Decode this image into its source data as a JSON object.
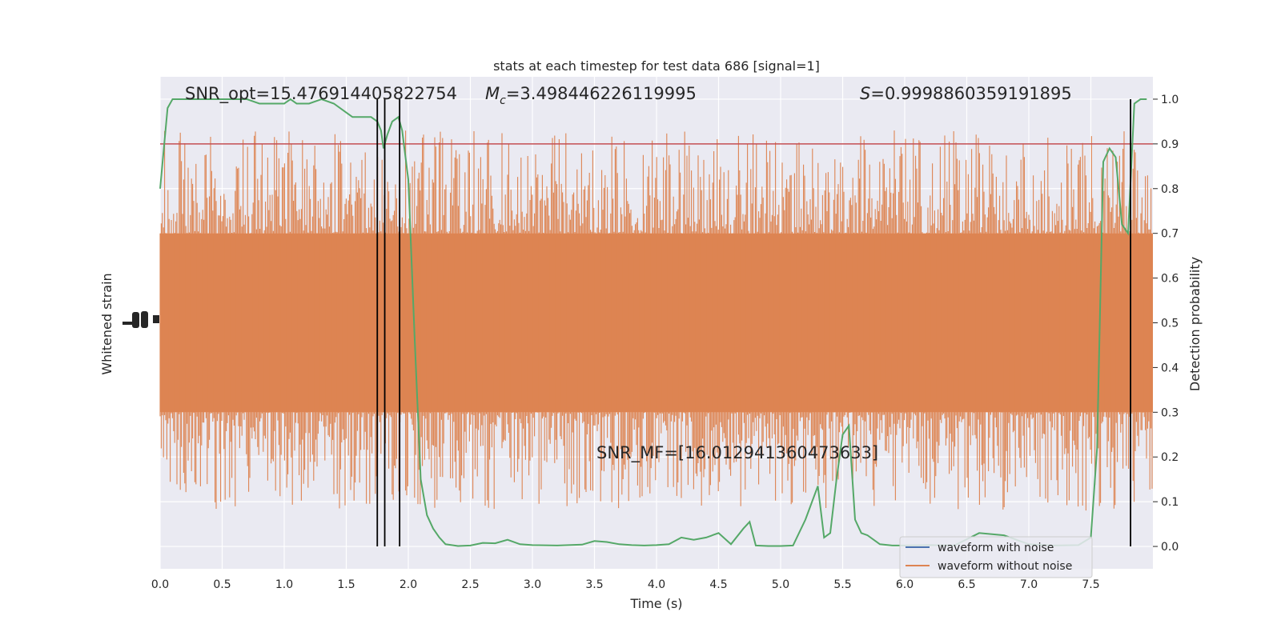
{
  "chart_data": {
    "type": "line",
    "title": "stats at each timestep for test data 686 [signal=1]",
    "xlabel": "Time (s)",
    "ylabel_left": "Whitened strain",
    "ylabel_right": "Detection probability",
    "xlim": [
      0,
      8.0
    ],
    "ylim_right": [
      -0.05,
      1.05
    ],
    "x_ticks": [
      "0.0",
      "0.5",
      "1.0",
      "1.5",
      "2.0",
      "2.5",
      "3.0",
      "3.5",
      "4.0",
      "4.5",
      "5.0",
      "5.5",
      "6.0",
      "6.5",
      "7.0",
      "7.5"
    ],
    "y_right_ticks": [
      "0.0",
      "0.1",
      "0.2",
      "0.3",
      "0.4",
      "0.5",
      "0.6",
      "0.7",
      "0.8",
      "0.9",
      "1.0"
    ],
    "threshold": 0.9,
    "vertical_lines_x": [
      1.75,
      1.81,
      1.93,
      7.82
    ],
    "annotations": {
      "snr_opt": "SNR_opt=15.476914405822754",
      "mc_symbol": "M",
      "mc_sub": "c",
      "mc_value": "=3.498446226119995",
      "s_symbol": "S",
      "s_value": "=0.9998860359191895",
      "snr_mf": "SNR_MF=[16.012941360473633]"
    },
    "series": [
      {
        "name": "waveform with noise",
        "color": "#4c72b0"
      },
      {
        "name": "waveform without noise",
        "color": "#dd8452"
      },
      {
        "color": "#55a868",
        "x": [
          0.0,
          0.06,
          0.1,
          0.2,
          0.3,
          0.4,
          0.5,
          0.6,
          0.7,
          0.8,
          0.9,
          1.0,
          1.05,
          1.1,
          1.2,
          1.3,
          1.4,
          1.5,
          1.55,
          1.6,
          1.65,
          1.7,
          1.75,
          1.78,
          1.8,
          1.83,
          1.87,
          1.92,
          1.95,
          2.0,
          2.05,
          2.1,
          2.15,
          2.2,
          2.25,
          2.3,
          2.4,
          2.5,
          2.6,
          2.7,
          2.8,
          2.9,
          3.0,
          3.2,
          3.4,
          3.5,
          3.6,
          3.7,
          3.8,
          3.9,
          4.0,
          4.1,
          4.2,
          4.3,
          4.4,
          4.5,
          4.6,
          4.7,
          4.75,
          4.8,
          4.9,
          5.0,
          5.1,
          5.2,
          5.3,
          5.35,
          5.4,
          5.45,
          5.5,
          5.55,
          5.6,
          5.65,
          5.7,
          5.8,
          5.9,
          6.0,
          6.2,
          6.4,
          6.6,
          6.8,
          7.0,
          7.2,
          7.4,
          7.5,
          7.55,
          7.6,
          7.65,
          7.7,
          7.75,
          7.8,
          7.85,
          7.9,
          7.95
        ],
        "y": [
          0.8,
          0.98,
          1.0,
          1.0,
          1.0,
          1.0,
          1.0,
          1.0,
          1.0,
          0.99,
          0.99,
          0.99,
          1.0,
          0.99,
          0.99,
          1.0,
          0.99,
          0.97,
          0.96,
          0.96,
          0.96,
          0.96,
          0.95,
          0.93,
          0.89,
          0.92,
          0.95,
          0.96,
          0.93,
          0.82,
          0.47,
          0.15,
          0.07,
          0.04,
          0.02,
          0.005,
          0.001,
          0.002,
          0.008,
          0.007,
          0.015,
          0.005,
          0.003,
          0.002,
          0.004,
          0.012,
          0.01,
          0.005,
          0.003,
          0.002,
          0.003,
          0.005,
          0.02,
          0.015,
          0.02,
          0.03,
          0.005,
          0.04,
          0.055,
          0.002,
          0.001,
          0.001,
          0.002,
          0.06,
          0.135,
          0.02,
          0.03,
          0.15,
          0.25,
          0.27,
          0.06,
          0.03,
          0.025,
          0.005,
          0.002,
          0.002,
          0.003,
          0.002,
          0.03,
          0.025,
          0.005,
          0.002,
          0.003,
          0.02,
          0.22,
          0.86,
          0.89,
          0.87,
          0.72,
          0.7,
          0.99,
          1.0,
          1.0
        ]
      }
    ]
  }
}
